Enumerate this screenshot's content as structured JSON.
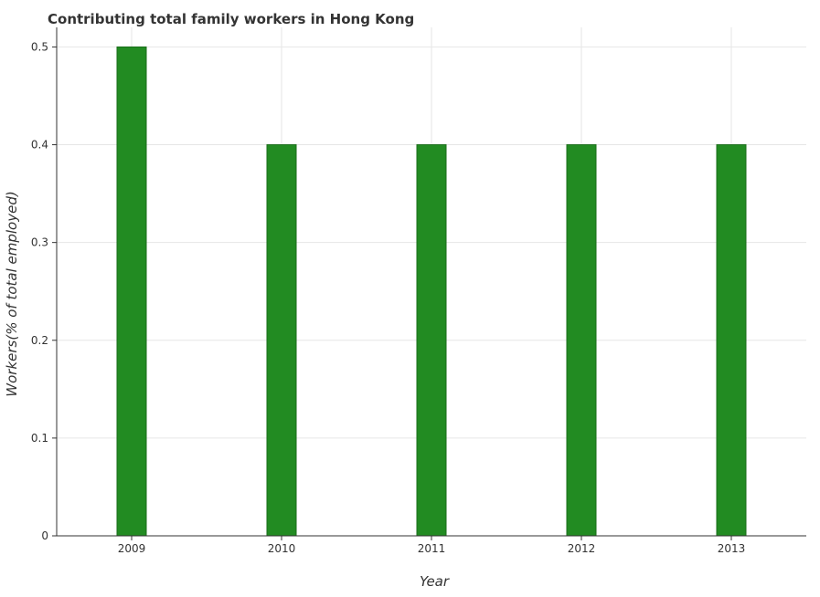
{
  "chart_data": {
    "type": "bar",
    "title": "Contributing total family workers in Hong Kong",
    "xlabel": "Year",
    "ylabel": "Workers(% of total employed)",
    "categories": [
      "2009",
      "2010",
      "2011",
      "2012",
      "2013"
    ],
    "values": [
      0.5,
      0.4,
      0.4,
      0.4,
      0.4
    ],
    "ylim": [
      0,
      0.52
    ],
    "yticks": [
      0,
      0.1,
      0.2,
      0.3,
      0.4,
      0.5
    ],
    "ytick_labels": [
      "0",
      "0.1",
      "0.2",
      "0.3",
      "0.4",
      "0.5"
    ],
    "grid": true,
    "legend": "none",
    "colors": {
      "bar": "#228b22",
      "bar_edge": "#1a6e1a",
      "grid": "#e6e6e6",
      "axis": "#333333",
      "text": "#333333"
    }
  }
}
